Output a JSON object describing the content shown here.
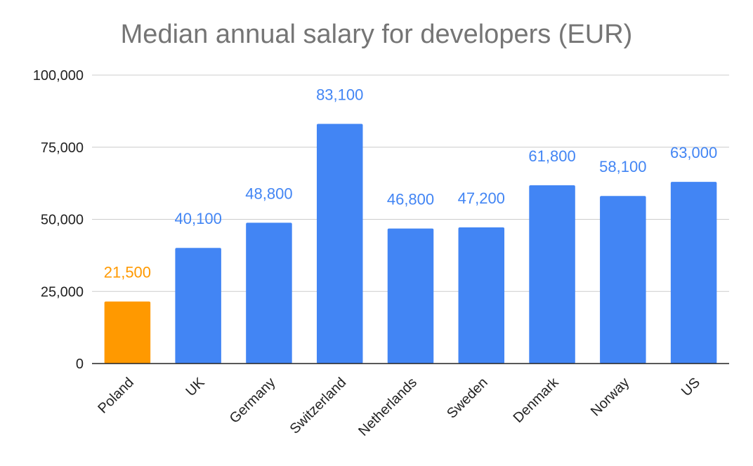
{
  "chart_data": {
    "type": "bar",
    "title": "Median annual salary for developers (EUR)",
    "categories": [
      "Poland",
      "UK",
      "Germany",
      "Switzerland",
      "Netherlands",
      "Sweden",
      "Denmark",
      "Norway",
      "US"
    ],
    "values": [
      21500,
      40100,
      48800,
      83100,
      46800,
      47200,
      61800,
      58100,
      63000
    ],
    "data_labels": [
      "21,500",
      "40,100",
      "48,800",
      "83,100",
      "46,800",
      "47,200",
      "61,800",
      "58,100",
      "63,000"
    ],
    "y_ticks": [
      0,
      25000,
      50000,
      75000,
      100000
    ],
    "y_tick_labels": [
      "0",
      "25,000",
      "50,000",
      "75,000",
      "100,000"
    ],
    "ylim": [
      0,
      100000
    ],
    "xlabel": "",
    "ylabel": "",
    "grid": true,
    "legend": "none",
    "colors": {
      "default_bar": "#4285F4",
      "highlight_bar": "#FF9900",
      "highlight_category": "Poland",
      "title": "#757575",
      "gridline": "#cccccc",
      "axis": "#222222"
    }
  }
}
